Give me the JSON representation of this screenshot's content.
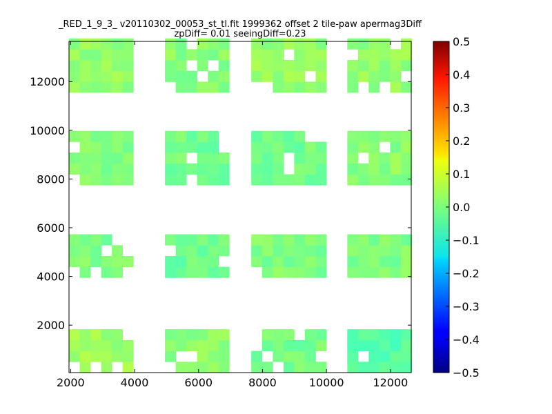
{
  "title_line1": "_RED_1_9_3_ v20110302_00053_st_tl.fit 1999362 offset 2 tile-paw apermag3Diff",
  "title_line2": "zpDiff= 0.01 seeingDiff=0.23",
  "chart_data": {
    "type": "heatmap",
    "title": "_RED_1_9_3_ v20110302_00053_st_tl.fit 1999362 offset 2 tile-paw apermag3Diff\nzpDiff= 0.01 seeingDiff=0.23",
    "xlabel": "",
    "ylabel": "",
    "xlim": [
      1950,
      12650
    ],
    "ylim": [
      50,
      13650
    ],
    "x_ticks": [
      2000,
      4000,
      6000,
      8000,
      10000,
      12000
    ],
    "y_ticks": [
      2000,
      4000,
      6000,
      8000,
      10000,
      12000
    ],
    "cell_width": 335,
    "cell_height": 445,
    "colormap": "jet",
    "colorbar": {
      "vmin": -0.5,
      "vmax": 0.5,
      "ticks": [
        "0.5",
        "0.4",
        "0.3",
        "0.2",
        "0.1",
        "0.0",
        "−0.1",
        "−0.2",
        "−0.3",
        "−0.4",
        "−0.5"
      ]
    },
    "blocks": [
      {
        "x": [
          1950,
          3950
        ],
        "y": [
          50,
          2050
        ],
        "value": 0.03
      },
      {
        "x": [
          4950,
          6950
        ],
        "y": [
          50,
          2050
        ],
        "value": 0.01
      },
      {
        "x": [
          7650,
          9950
        ],
        "y": [
          50,
          2050
        ],
        "value": -0.01
      },
      {
        "x": [
          10650,
          12650
        ],
        "y": [
          50,
          2050
        ],
        "value": -0.04
      },
      {
        "x": [
          1950,
          3950
        ],
        "y": [
          3950,
          5950
        ],
        "value": 0.0
      },
      {
        "x": [
          4950,
          6950
        ],
        "y": [
          3950,
          5950
        ],
        "value": -0.02
      },
      {
        "x": [
          7650,
          9950
        ],
        "y": [
          3950,
          5950
        ],
        "value": 0.0
      },
      {
        "x": [
          10650,
          12650
        ],
        "y": [
          3950,
          5950
        ],
        "value": 0.0
      },
      {
        "x": [
          1950,
          3950
        ],
        "y": [
          7750,
          9850
        ],
        "value": 0.0
      },
      {
        "x": [
          4950,
          6950
        ],
        "y": [
          7750,
          9850
        ],
        "value": -0.01
      },
      {
        "x": [
          7650,
          9950
        ],
        "y": [
          7750,
          9850
        ],
        "value": -0.01
      },
      {
        "x": [
          10650,
          12650
        ],
        "y": [
          7750,
          9850
        ],
        "value": 0.01
      },
      {
        "x": [
          1950,
          3950
        ],
        "y": [
          11550,
          13650
        ],
        "value": 0.02
      },
      {
        "x": [
          4950,
          6950
        ],
        "y": [
          11550,
          13650
        ],
        "value": 0.01
      },
      {
        "x": [
          7650,
          9950
        ],
        "y": [
          11550,
          13650
        ],
        "value": 0.02
      },
      {
        "x": [
          10650,
          12650
        ],
        "y": [
          11550,
          13650
        ],
        "value": 0.02
      }
    ]
  }
}
